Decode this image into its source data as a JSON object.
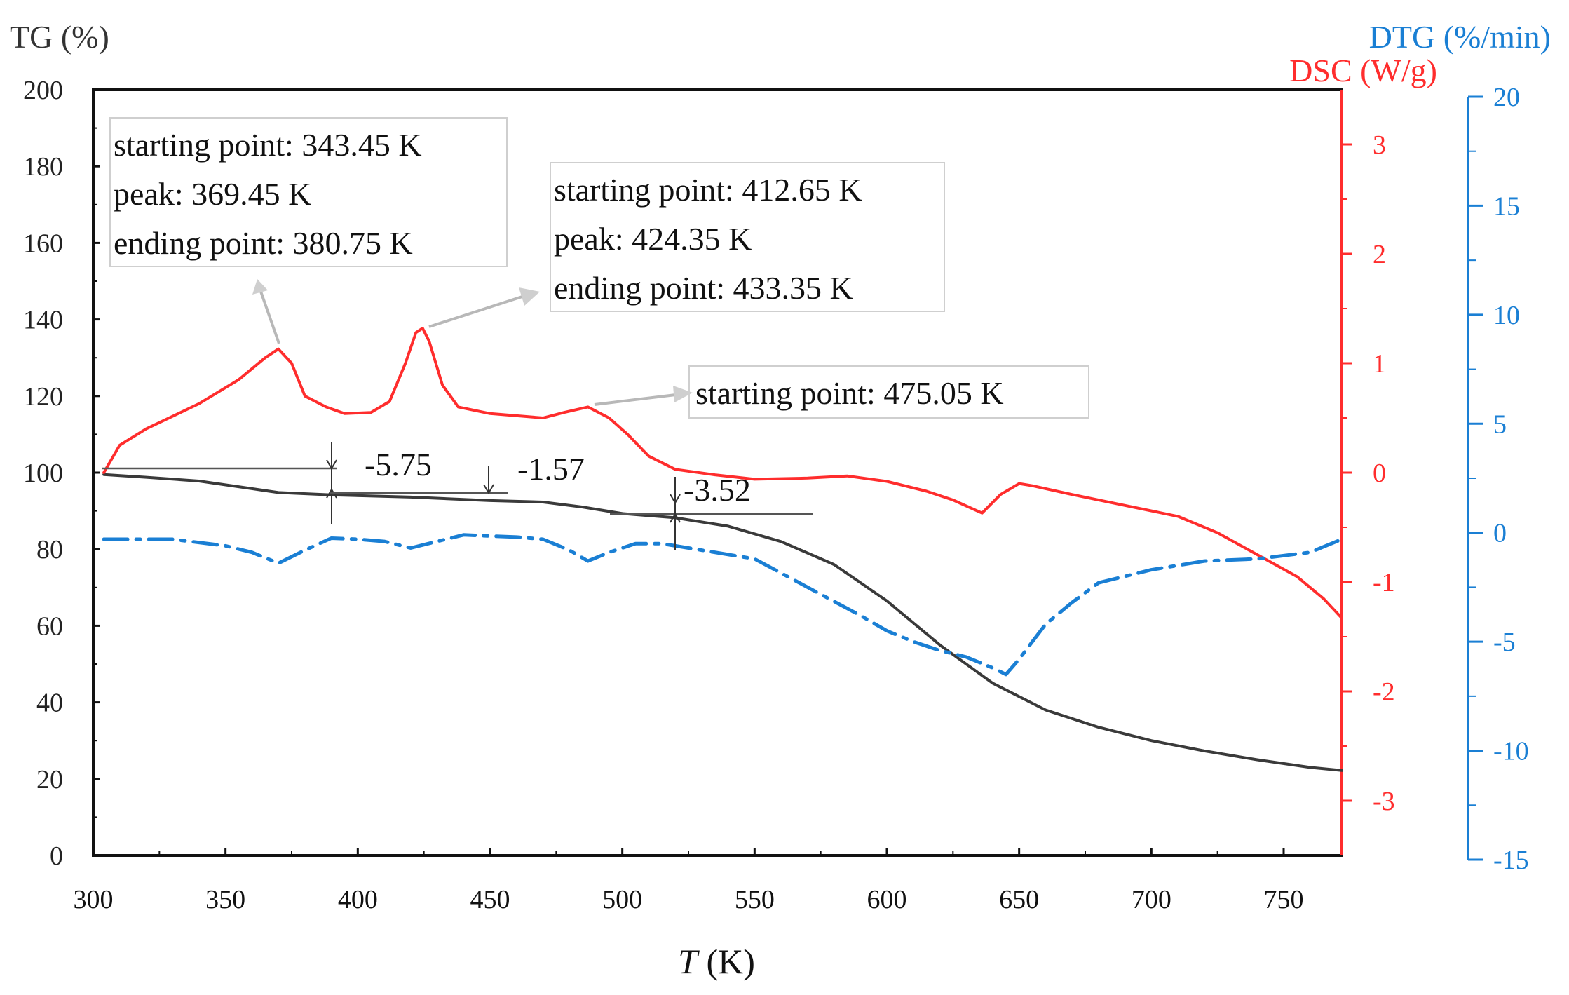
{
  "chart_data": {
    "type": "line",
    "xlabel_italic": "T",
    "xlabel_unit": " (K)",
    "y_left_label": "TG (%)",
    "y_right1_label": "DSC (W/g)",
    "y_right2_label": "DTG (%/min)",
    "xlim": [
      300,
      772
    ],
    "x_ticks": [
      300,
      350,
      400,
      450,
      500,
      550,
      600,
      650,
      700,
      750
    ],
    "y_left_lim": [
      0,
      200
    ],
    "y_left_ticks": [
      0,
      20,
      40,
      60,
      80,
      100,
      120,
      140,
      160,
      180,
      200
    ],
    "y_dsc_lim": [
      -3.5,
      3.5
    ],
    "y_dsc_ticks": [
      -3,
      -2,
      -1,
      0,
      1,
      2,
      3
    ],
    "y_dtg_lim": [
      -15,
      20
    ],
    "y_dtg_ticks": [
      -15,
      -10,
      -5,
      0,
      5,
      10,
      15,
      20
    ],
    "colors": {
      "tg": "#3a3a3a",
      "dsc": "#ff2d2d",
      "dtg": "#1a7fd4",
      "axis": "#111111"
    },
    "series": [
      {
        "name": "TG",
        "axis": "left",
        "style": "solid",
        "x": [
          304,
          320,
          340,
          360,
          370,
          390,
          420,
          450,
          470,
          485,
          500,
          520,
          540,
          560,
          580,
          600,
          620,
          640,
          660,
          680,
          700,
          720,
          740,
          760,
          772
        ],
        "y": [
          99.5,
          98.8,
          97.8,
          95.8,
          94.8,
          94.2,
          93.6,
          92.7,
          92.3,
          91.0,
          89.3,
          88.2,
          86.0,
          82.0,
          76.0,
          66.5,
          55.0,
          45.0,
          38.0,
          33.5,
          30.0,
          27.3,
          25.0,
          23.0,
          22.2
        ]
      },
      {
        "name": "DSC",
        "axis": "right1",
        "style": "solid",
        "x": [
          304,
          310,
          320,
          340,
          355,
          365,
          370,
          375,
          380,
          388,
          395,
          405,
          412,
          418,
          422,
          424.5,
          427,
          432,
          438,
          450,
          470,
          478,
          487,
          495,
          502,
          510,
          520,
          535,
          550,
          570,
          585,
          600,
          615,
          625,
          636,
          643,
          650,
          655,
          670,
          690,
          710,
          725,
          740,
          755,
          765,
          772
        ],
        "y": [
          0.0,
          0.25,
          0.4,
          0.63,
          0.85,
          1.05,
          1.13,
          1.0,
          0.7,
          0.6,
          0.54,
          0.55,
          0.65,
          1.0,
          1.28,
          1.32,
          1.2,
          0.8,
          0.6,
          0.54,
          0.5,
          0.55,
          0.6,
          0.5,
          0.35,
          0.15,
          0.03,
          -0.02,
          -0.06,
          -0.05,
          -0.03,
          -0.08,
          -0.17,
          -0.25,
          -0.37,
          -0.2,
          -0.1,
          -0.12,
          -0.2,
          -0.3,
          -0.4,
          -0.55,
          -0.75,
          -0.95,
          -1.15,
          -1.33
        ]
      },
      {
        "name": "DTG",
        "axis": "right2",
        "style": "dash-dot",
        "x": [
          304,
          330,
          350,
          360,
          370,
          380,
          390,
          400,
          410,
          420,
          430,
          440,
          450,
          460,
          470,
          480,
          487,
          495,
          505,
          515,
          520,
          530,
          550,
          570,
          590,
          600,
          610,
          620,
          630,
          640,
          645,
          650,
          660,
          670,
          680,
          690,
          700,
          720,
          740,
          760,
          772
        ],
        "y": [
          -0.3,
          -0.3,
          -0.6,
          -0.9,
          -1.4,
          -0.8,
          -0.25,
          -0.3,
          -0.4,
          -0.7,
          -0.4,
          -0.1,
          -0.15,
          -0.2,
          -0.3,
          -0.8,
          -1.3,
          -0.9,
          -0.5,
          -0.5,
          -0.6,
          -0.8,
          -1.2,
          -2.5,
          -3.8,
          -4.5,
          -5.0,
          -5.4,
          -5.7,
          -6.2,
          -6.5,
          -5.8,
          -4.2,
          -3.2,
          -2.3,
          -2.0,
          -1.7,
          -1.3,
          -1.2,
          -0.9,
          -0.3
        ]
      }
    ],
    "annotations": [
      {
        "lines": [
          "starting point: 343.45 K",
          "peak: 369.45 K",
          "ending point: 380.75 K"
        ],
        "target": "dsc-peak-1"
      },
      {
        "lines": [
          "starting point: 412.65 K",
          "peak: 424.35 K",
          "ending point: 433.35 K"
        ],
        "target": "dsc-peak-2"
      },
      {
        "lines": [
          "starting point: 475.05 K"
        ],
        "target": "dsc-peak-3"
      }
    ],
    "mass_steps": [
      {
        "label": "-5.75",
        "x": 390
      },
      {
        "label": "-1.57",
        "x": 447
      },
      {
        "label": "-3.52",
        "x": 520
      }
    ]
  }
}
